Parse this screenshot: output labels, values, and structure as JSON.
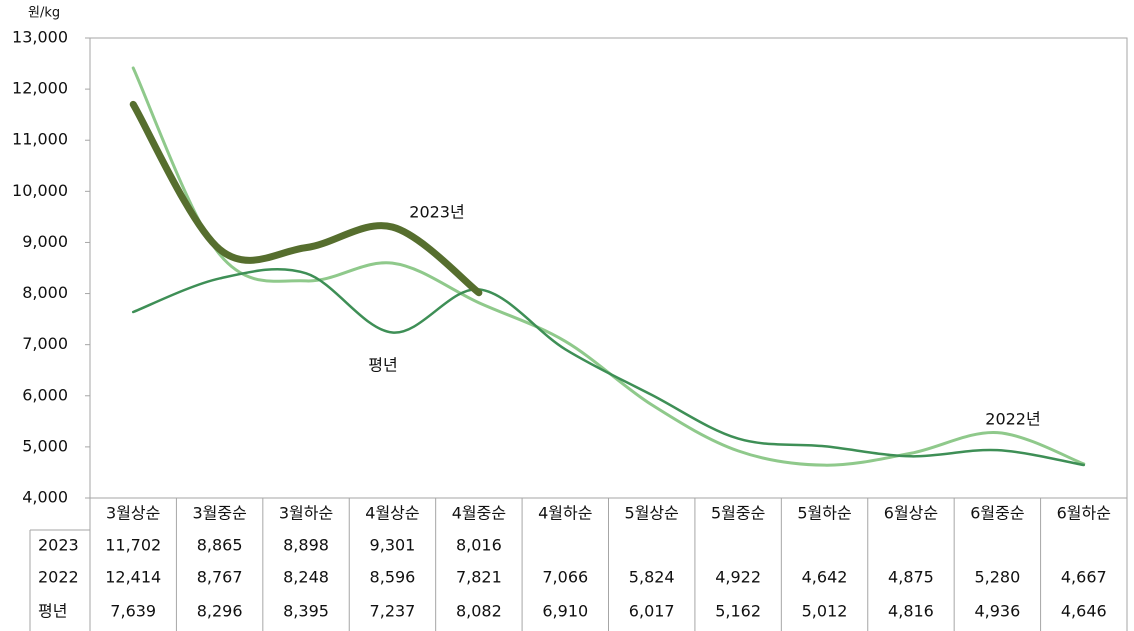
{
  "chart_data": {
    "type": "line",
    "y_axis_label": "원/kg",
    "categories": [
      "3월상순",
      "3월중순",
      "3월하순",
      "4월상순",
      "4월중순",
      "4월하순",
      "5월상순",
      "5월중순",
      "5월하순",
      "6월상순",
      "6월중순",
      "6월하순"
    ],
    "series": [
      {
        "name": "2023",
        "color": "#566e2e",
        "width": 7,
        "values": [
          11702,
          8865,
          8898,
          9301,
          8016,
          null,
          null,
          null,
          null,
          null,
          null,
          null
        ],
        "value_labels": [
          "11,702",
          "8,865",
          "8,898",
          "9,301",
          "8,016",
          null,
          null,
          null,
          null,
          null,
          null,
          null
        ]
      },
      {
        "name": "2022",
        "color": "#8fc98b",
        "width": 3,
        "values": [
          12414,
          8767,
          8248,
          8596,
          7821,
          7066,
          5824,
          4922,
          4642,
          4875,
          5280,
          4667
        ],
        "value_labels": [
          "12,414",
          "8,767",
          "8,248",
          "8,596",
          "7,821",
          "7,066",
          "5,824",
          "4,922",
          "4,642",
          "4,875",
          "5,280",
          "4,667"
        ]
      },
      {
        "name": "평년",
        "color": "#3e8f56",
        "width": 2.5,
        "values": [
          7639,
          8296,
          8395,
          7237,
          8082,
          6910,
          6017,
          5162,
          5012,
          4816,
          4936,
          4646
        ],
        "value_labels": [
          "7,639",
          "8,296",
          "8,395",
          "7,237",
          "8,082",
          "6,910",
          "6,017",
          "5,162",
          "5,012",
          "4,816",
          "4,936",
          "4,646"
        ]
      }
    ],
    "annotations": [
      "2023년",
      "평년",
      "2022년"
    ],
    "ylim": [
      4000,
      13000
    ],
    "yticks": [
      {
        "value": 4000,
        "label": "4,000"
      },
      {
        "value": 5000,
        "label": "5,000"
      },
      {
        "value": 6000,
        "label": "6,000"
      },
      {
        "value": 7000,
        "label": "7,000"
      },
      {
        "value": 8000,
        "label": "8,000"
      },
      {
        "value": 9000,
        "label": "9,000"
      },
      {
        "value": 10000,
        "label": "10,000"
      },
      {
        "value": 11000,
        "label": "11,000"
      },
      {
        "value": 12000,
        "label": "12,000"
      },
      {
        "value": 13000,
        "label": "13,000"
      }
    ],
    "grid": false
  }
}
